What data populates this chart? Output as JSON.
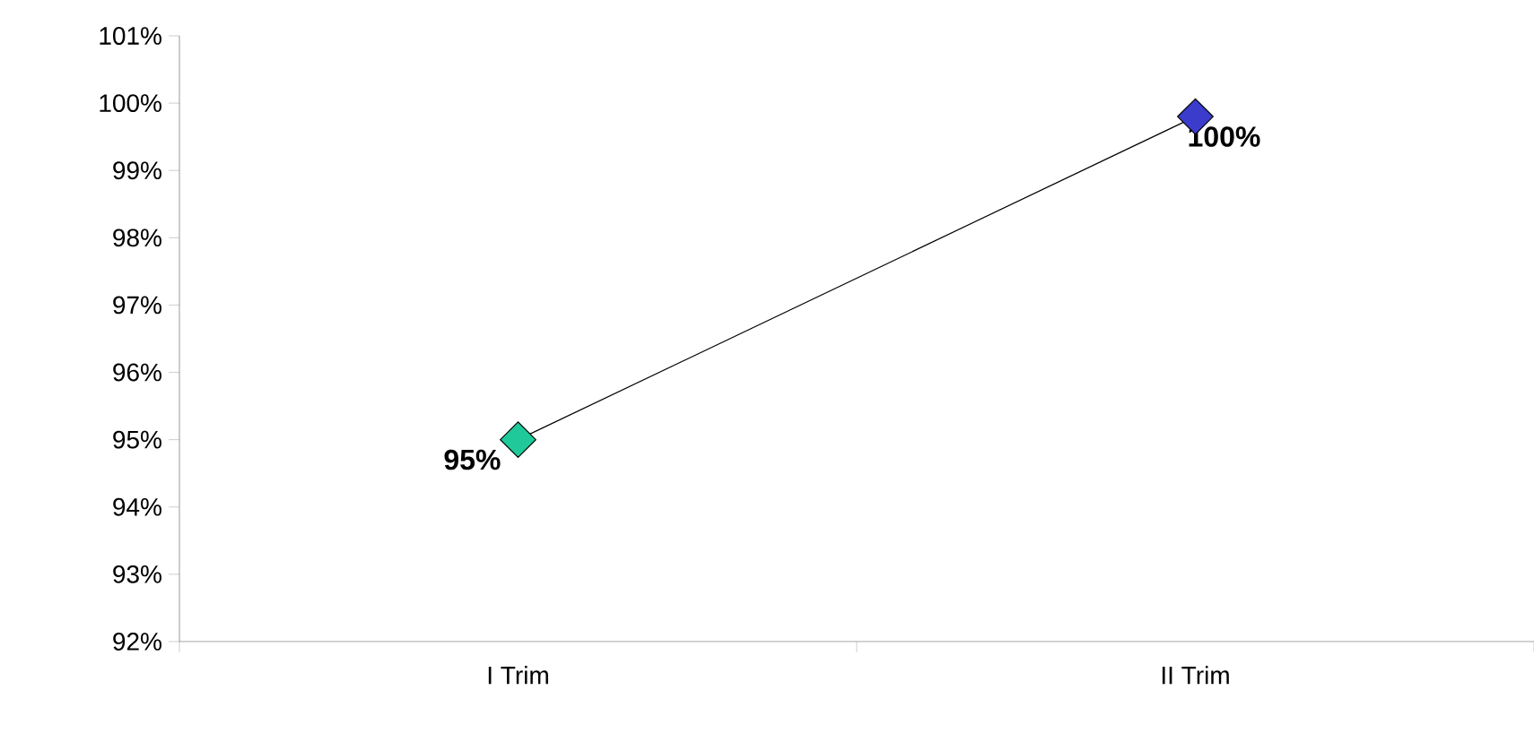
{
  "chart_data": {
    "type": "line",
    "categories": [
      "I  Trim",
      "II Trim"
    ],
    "series": [
      {
        "color": "#000000",
        "colors": [
          "#1fc99a",
          "#3b3bcc"
        ],
        "values": [
          95,
          99.8
        ],
        "value_labels": [
          "95%",
          "100%"
        ]
      }
    ],
    "ylim": [
      92,
      101
    ],
    "yticks": [
      {
        "value": 92,
        "label": "92%"
      },
      {
        "value": 93,
        "label": "93%"
      },
      {
        "value": 94,
        "label": "94%"
      },
      {
        "value": 95,
        "label": "95%"
      },
      {
        "value": 96,
        "label": "96%"
      },
      {
        "value": 97,
        "label": "97%"
      },
      {
        "value": 98,
        "label": "98%"
      },
      {
        "value": 99,
        "label": "99%"
      },
      {
        "value": 100,
        "label": "100%"
      },
      {
        "value": 101,
        "label": "101%"
      }
    ],
    "marker": "diamond",
    "line_style": "solid",
    "grid": false
  }
}
